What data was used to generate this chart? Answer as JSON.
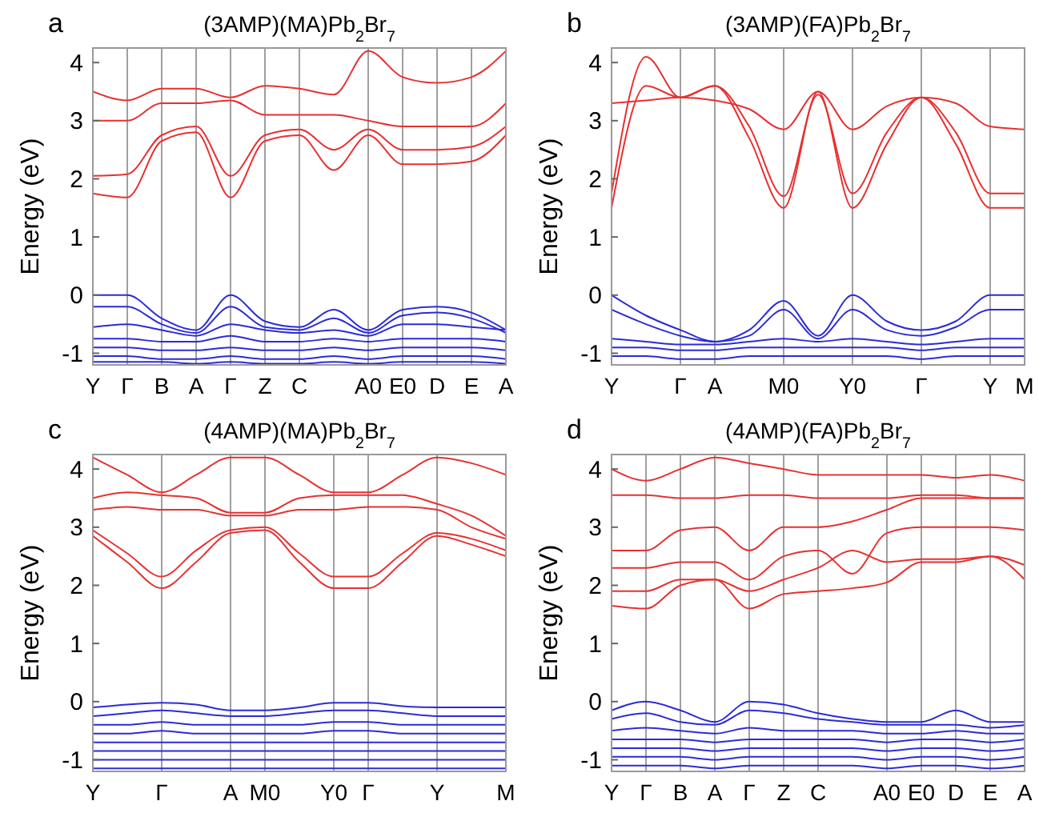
{
  "chart_data": [
    {
      "type": "line",
      "title": "(3AMP)(MA)Pb$_{2}$Br$_{7}$",
      "annotations": [
        "a"
      ],
      "ylabel": "Energy (eV)",
      "grid": "x",
      "ylim": [
        -1.2,
        4.25
      ],
      "yticks": [
        -1,
        0,
        1,
        2,
        3,
        4
      ],
      "categories": [
        "Y",
        "Γ",
        "B",
        "A",
        "Γ",
        "Z",
        "C",
        null,
        "A0",
        "E0",
        "D",
        "E",
        "A"
      ],
      "series": [
        {
          "color": "#e83030",
          "values": [
            1.75,
            1.68,
            2.65,
            2.8,
            1.68,
            2.65,
            2.75,
            2.15,
            2.75,
            2.25,
            2.25,
            2.3,
            2.75
          ]
        },
        {
          "color": "#e83030",
          "values": [
            2.05,
            2.08,
            2.75,
            2.9,
            2.05,
            2.75,
            2.85,
            2.5,
            2.85,
            2.5,
            2.5,
            2.55,
            2.9
          ]
        },
        {
          "color": "#e83030",
          "values": [
            3.0,
            3.0,
            3.3,
            3.3,
            3.35,
            3.1,
            3.1,
            3.1,
            3.0,
            2.9,
            2.9,
            2.9,
            3.3
          ]
        },
        {
          "color": "#e83030",
          "values": [
            3.5,
            3.35,
            3.55,
            3.55,
            3.4,
            3.6,
            3.55,
            3.45,
            4.2,
            3.75,
            3.65,
            3.75,
            4.2
          ]
        },
        {
          "color": "#2b2bd9",
          "values": [
            0,
            0,
            -0.4,
            -0.6,
            0,
            -0.45,
            -0.55,
            -0.25,
            -0.6,
            -0.25,
            -0.2,
            -0.3,
            -0.6
          ]
        },
        {
          "color": "#2b2bd9",
          "values": [
            -0.2,
            -0.2,
            -0.5,
            -0.65,
            -0.2,
            -0.55,
            -0.6,
            -0.4,
            -0.65,
            -0.35,
            -0.3,
            -0.4,
            -0.65
          ]
        },
        {
          "color": "#2b2bd9",
          "values": [
            -0.55,
            -0.5,
            -0.6,
            -0.7,
            -0.5,
            -0.6,
            -0.65,
            -0.6,
            -0.7,
            -0.5,
            -0.5,
            -0.55,
            -0.6
          ]
        },
        {
          "color": "#2b2bd9",
          "values": [
            -0.75,
            -0.75,
            -0.8,
            -0.8,
            -0.7,
            -0.8,
            -0.8,
            -0.75,
            -0.8,
            -0.75,
            -0.75,
            -0.75,
            -0.8
          ]
        },
        {
          "color": "#2b2bd9",
          "values": [
            -0.9,
            -0.9,
            -0.95,
            -0.95,
            -0.9,
            -0.95,
            -0.95,
            -0.9,
            -0.95,
            -0.9,
            -0.9,
            -0.9,
            -0.95
          ]
        },
        {
          "color": "#2b2bd9",
          "values": [
            -1.05,
            -1.05,
            -1.1,
            -1.1,
            -1.05,
            -1.1,
            -1.1,
            -1.05,
            -1.1,
            -1.05,
            -1.05,
            -1.05,
            -1.1
          ]
        },
        {
          "color": "#2b2bd9",
          "values": [
            -1.15,
            -1.15,
            -1.15,
            -1.18,
            -1.15,
            -1.18,
            -1.18,
            -1.15,
            -1.18,
            -1.15,
            -1.15,
            -1.15,
            -1.18
          ]
        }
      ]
    },
    {
      "type": "line",
      "title": "(3AMP)(FA)Pb$_{2}$Br$_{7}$",
      "annotations": [
        "b"
      ],
      "ylabel": "Energy (eV)",
      "grid": "x",
      "ylim": [
        -1.2,
        4.25
      ],
      "yticks": [
        -1,
        0,
        1,
        2,
        3,
        4
      ],
      "categories": [
        "Y",
        null,
        "Γ",
        "A",
        null,
        "M0",
        null,
        "Y0",
        null,
        "Γ",
        null,
        "Y",
        "M"
      ],
      "series": [
        {
          "color": "#e83030",
          "values": [
            1.5,
            3.6,
            3.4,
            3.6,
            2.7,
            1.5,
            3.5,
            1.5,
            2.6,
            3.4,
            2.6,
            1.5,
            1.5
          ]
        },
        {
          "color": "#e83030",
          "values": [
            1.75,
            4.1,
            3.4,
            3.6,
            2.9,
            1.7,
            3.45,
            1.75,
            2.8,
            3.4,
            2.8,
            1.75,
            1.75
          ]
        },
        {
          "color": "#e83030",
          "values": [
            3.3,
            3.35,
            3.4,
            3.35,
            3.2,
            2.85,
            3.5,
            2.85,
            3.25,
            3.4,
            3.3,
            2.9,
            2.85
          ]
        },
        {
          "color": "#2b2bd9",
          "values": [
            0,
            -0.35,
            -0.6,
            -0.8,
            -0.6,
            -0.1,
            -0.7,
            0,
            -0.45,
            -0.6,
            -0.45,
            0,
            0
          ]
        },
        {
          "color": "#2b2bd9",
          "values": [
            -0.25,
            -0.5,
            -0.7,
            -0.8,
            -0.7,
            -0.25,
            -0.75,
            -0.25,
            -0.6,
            -0.7,
            -0.55,
            -0.25,
            -0.25
          ]
        },
        {
          "color": "#2b2bd9",
          "values": [
            -0.75,
            -0.8,
            -0.85,
            -0.85,
            -0.8,
            -0.75,
            -0.8,
            -0.75,
            -0.8,
            -0.85,
            -0.8,
            -0.75,
            -0.75
          ]
        },
        {
          "color": "#2b2bd9",
          "values": [
            -0.9,
            -0.9,
            -0.95,
            -0.95,
            -0.9,
            -0.9,
            -0.9,
            -0.9,
            -0.9,
            -0.95,
            -0.9,
            -0.9,
            -0.9
          ]
        },
        {
          "color": "#2b2bd9",
          "values": [
            -1.05,
            -1.05,
            -1.1,
            -1.1,
            -1.05,
            -1.05,
            -1.05,
            -1.05,
            -1.05,
            -1.1,
            -1.05,
            -1.05,
            -1.05
          ]
        }
      ]
    },
    {
      "type": "line",
      "title": "(4AMP)(MA)Pb$_{2}$Br$_{7}$",
      "annotations": [
        "c"
      ],
      "ylabel": "Energy (eV)",
      "grid": "x",
      "ylim": [
        -1.2,
        4.25
      ],
      "yticks": [
        -1,
        0,
        1,
        2,
        3,
        4
      ],
      "categories": [
        "Y",
        null,
        "Γ",
        null,
        "A",
        "M0",
        null,
        "Y0",
        "Γ",
        null,
        "Y",
        null,
        "M"
      ],
      "series": [
        {
          "color": "#e83030",
          "values": [
            2.85,
            2.4,
            1.95,
            2.4,
            2.9,
            2.95,
            2.4,
            1.95,
            1.95,
            2.4,
            2.85,
            2.7,
            2.5
          ]
        },
        {
          "color": "#e83030",
          "values": [
            2.95,
            2.55,
            2.15,
            2.6,
            2.95,
            3.0,
            2.55,
            2.15,
            2.15,
            2.55,
            2.9,
            2.8,
            2.6
          ]
        },
        {
          "color": "#e83030",
          "values": [
            3.3,
            3.35,
            3.3,
            3.3,
            3.2,
            3.2,
            3.3,
            3.3,
            3.35,
            3.35,
            3.3,
            3.0,
            2.8
          ]
        },
        {
          "color": "#e83030",
          "values": [
            3.5,
            3.6,
            3.55,
            3.5,
            3.25,
            3.25,
            3.5,
            3.55,
            3.55,
            3.55,
            3.4,
            3.2,
            2.85
          ]
        },
        {
          "color": "#e83030",
          "values": [
            4.2,
            3.9,
            3.6,
            3.9,
            4.2,
            4.2,
            3.9,
            3.6,
            3.6,
            3.9,
            4.2,
            4.1,
            3.9
          ]
        },
        {
          "color": "#2b2bd9",
          "values": [
            -0.1,
            -0.05,
            -0.02,
            -0.05,
            -0.15,
            -0.15,
            -0.1,
            -0.02,
            -0.02,
            -0.08,
            -0.1,
            -0.1,
            -0.1
          ]
        },
        {
          "color": "#2b2bd9",
          "values": [
            -0.25,
            -0.2,
            -0.15,
            -0.2,
            -0.25,
            -0.25,
            -0.2,
            -0.15,
            -0.15,
            -0.2,
            -0.25,
            -0.25,
            -0.25
          ]
        },
        {
          "color": "#2b2bd9",
          "values": [
            -0.4,
            -0.4,
            -0.35,
            -0.4,
            -0.4,
            -0.4,
            -0.4,
            -0.35,
            -0.35,
            -0.4,
            -0.4,
            -0.4,
            -0.4
          ]
        },
        {
          "color": "#2b2bd9",
          "values": [
            -0.55,
            -0.55,
            -0.5,
            -0.55,
            -0.55,
            -0.55,
            -0.55,
            -0.5,
            -0.5,
            -0.55,
            -0.55,
            -0.55,
            -0.55
          ]
        },
        {
          "color": "#2b2bd9",
          "values": [
            -0.7,
            -0.7,
            -0.7,
            -0.7,
            -0.7,
            -0.7,
            -0.7,
            -0.7,
            -0.7,
            -0.7,
            -0.7,
            -0.7,
            -0.7
          ]
        },
        {
          "color": "#2b2bd9",
          "values": [
            -0.85,
            -0.85,
            -0.85,
            -0.85,
            -0.85,
            -0.85,
            -0.85,
            -0.85,
            -0.85,
            -0.85,
            -0.85,
            -0.85,
            -0.85
          ]
        },
        {
          "color": "#2b2bd9",
          "values": [
            -1.0,
            -1.0,
            -1.0,
            -1.0,
            -1.0,
            -1.0,
            -1.0,
            -1.0,
            -1.0,
            -1.0,
            -1.0,
            -1.0,
            -1.0
          ]
        },
        {
          "color": "#2b2bd9",
          "values": [
            -1.15,
            -1.15,
            -1.15,
            -1.15,
            -1.15,
            -1.15,
            -1.15,
            -1.15,
            -1.15,
            -1.15,
            -1.15,
            -1.15,
            -1.15
          ]
        }
      ]
    },
    {
      "type": "line",
      "title": "(4AMP)(FA)Pb$_{2}$Br$_{7}$",
      "annotations": [
        "d"
      ],
      "ylabel": "Energy (eV)",
      "grid": "x",
      "ylim": [
        -1.2,
        4.25
      ],
      "yticks": [
        -1,
        0,
        1,
        2,
        3,
        4
      ],
      "categories": [
        "Y",
        "Γ",
        "B",
        "A",
        "Γ",
        "Z",
        "C",
        null,
        "A0",
        "E0",
        "D",
        "E",
        "A"
      ],
      "series": [
        {
          "color": "#e83030",
          "values": [
            1.65,
            1.6,
            2.0,
            2.1,
            1.6,
            1.85,
            1.9,
            1.95,
            2.05,
            2.4,
            2.4,
            2.5,
            2.1
          ]
        },
        {
          "color": "#e83030",
          "values": [
            1.9,
            1.9,
            2.1,
            2.1,
            1.9,
            2.1,
            2.3,
            2.6,
            2.4,
            2.45,
            2.45,
            2.5,
            2.35
          ]
        },
        {
          "color": "#e83030",
          "values": [
            2.3,
            2.3,
            2.4,
            2.4,
            2.1,
            2.5,
            2.6,
            2.2,
            2.9,
            3.0,
            3.0,
            3.0,
            2.95
          ]
        },
        {
          "color": "#e83030",
          "values": [
            2.6,
            2.6,
            2.95,
            3.0,
            2.6,
            3.0,
            3.0,
            3.1,
            3.3,
            3.5,
            3.5,
            3.5,
            3.5
          ]
        },
        {
          "color": "#e83030",
          "values": [
            3.55,
            3.55,
            3.5,
            3.5,
            3.55,
            3.55,
            3.5,
            3.5,
            3.5,
            3.55,
            3.55,
            3.5,
            3.5
          ]
        },
        {
          "color": "#e83030",
          "values": [
            4.0,
            3.8,
            4.0,
            4.2,
            4.1,
            4.0,
            3.9,
            3.9,
            3.9,
            3.9,
            3.85,
            3.9,
            3.8
          ]
        },
        {
          "color": "#2b2bd9",
          "values": [
            -0.15,
            0,
            -0.15,
            -0.35,
            0,
            -0.05,
            -0.2,
            -0.3,
            -0.35,
            -0.35,
            -0.15,
            -0.35,
            -0.35
          ]
        },
        {
          "color": "#2b2bd9",
          "values": [
            -0.3,
            -0.2,
            -0.35,
            -0.4,
            -0.15,
            -0.2,
            -0.3,
            -0.35,
            -0.4,
            -0.4,
            -0.4,
            -0.45,
            -0.4
          ]
        },
        {
          "color": "#2b2bd9",
          "values": [
            -0.5,
            -0.45,
            -0.5,
            -0.55,
            -0.45,
            -0.5,
            -0.5,
            -0.5,
            -0.55,
            -0.55,
            -0.5,
            -0.55,
            -0.55
          ]
        },
        {
          "color": "#2b2bd9",
          "values": [
            -0.65,
            -0.65,
            -0.65,
            -0.7,
            -0.65,
            -0.65,
            -0.65,
            -0.65,
            -0.7,
            -0.65,
            -0.65,
            -0.7,
            -0.65
          ]
        },
        {
          "color": "#2b2bd9",
          "values": [
            -0.8,
            -0.8,
            -0.8,
            -0.85,
            -0.8,
            -0.8,
            -0.8,
            -0.8,
            -0.85,
            -0.8,
            -0.8,
            -0.85,
            -0.8
          ]
        },
        {
          "color": "#2b2bd9",
          "values": [
            -0.95,
            -0.95,
            -0.95,
            -1.0,
            -0.95,
            -0.95,
            -0.95,
            -0.95,
            -1.0,
            -0.95,
            -0.95,
            -1.0,
            -0.95
          ]
        },
        {
          "color": "#2b2bd9",
          "values": [
            -1.1,
            -1.1,
            -1.1,
            -1.15,
            -1.1,
            -1.1,
            -1.1,
            -1.1,
            -1.15,
            -1.1,
            -1.1,
            -1.15,
            -1.1
          ]
        }
      ]
    }
  ]
}
